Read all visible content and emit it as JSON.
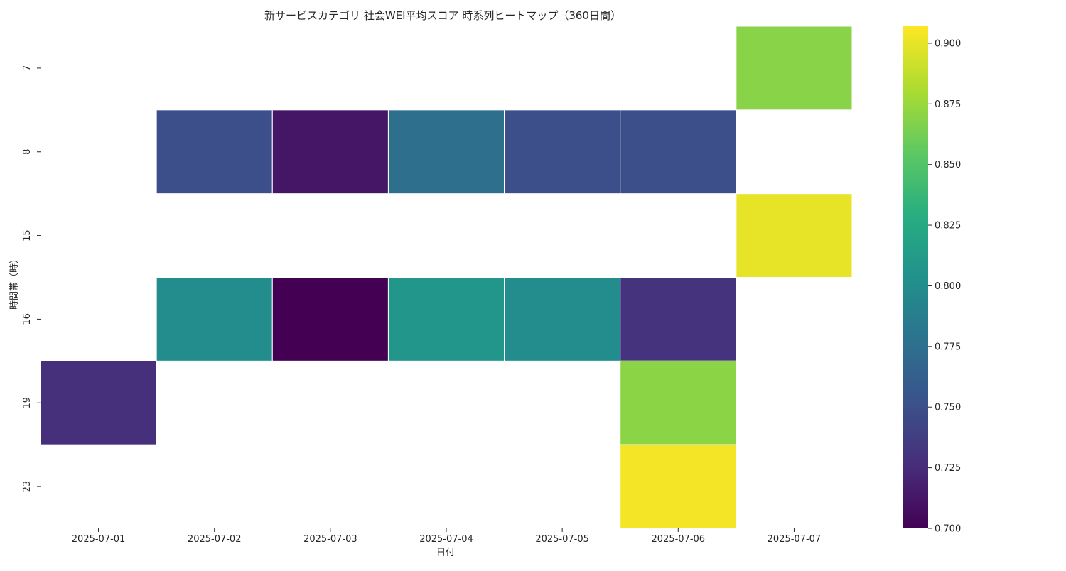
{
  "chart_data": {
    "type": "heatmap",
    "title": "新サービスカテゴリ 社会WEI平均スコア 時系列ヒートマップ（360日間）",
    "xlabel": "日付",
    "ylabel": "時間帯（時）",
    "x_categories": [
      "2025-07-01",
      "2025-07-02",
      "2025-07-03",
      "2025-07-04",
      "2025-07-05",
      "2025-07-06",
      "2025-07-07"
    ],
    "y_categories": [
      "7",
      "8",
      "15",
      "16",
      "19",
      "23"
    ],
    "values": [
      [
        null,
        null,
        null,
        null,
        null,
        null,
        0.869
      ],
      [
        null,
        0.75,
        0.712,
        0.775,
        0.75,
        0.75,
        null
      ],
      [
        null,
        null,
        null,
        null,
        null,
        null,
        0.9
      ],
      [
        null,
        0.8,
        0.7,
        0.808,
        0.8,
        0.73,
        null
      ],
      [
        0.728,
        null,
        null,
        null,
        null,
        0.87,
        null
      ],
      [
        null,
        null,
        null,
        null,
        null,
        0.904,
        null
      ]
    ],
    "colormap": "viridis",
    "vmin": 0.7,
    "vmax": 0.907,
    "colorbar_ticks": [
      "0.700",
      "0.725",
      "0.750",
      "0.775",
      "0.800",
      "0.825",
      "0.850",
      "0.875",
      "0.900"
    ],
    "colorbar_tick_values": [
      0.7,
      0.725,
      0.75,
      0.775,
      0.8,
      0.825,
      0.85,
      0.875,
      0.9
    ],
    "grid": false,
    "missing_color": "#ffffff",
    "cell_border_color": "#ffffff"
  }
}
